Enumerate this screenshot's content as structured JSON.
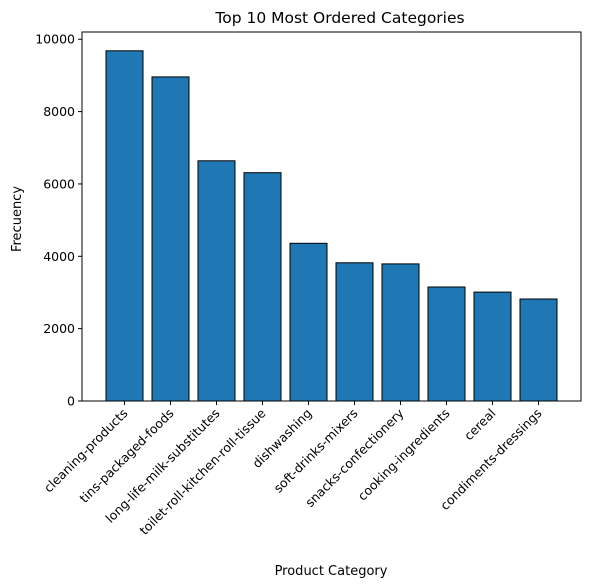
{
  "chart_data": {
    "type": "bar",
    "title": "Top 10 Most Ordered Categories",
    "xlabel": "Product Category",
    "ylabel": "Frecuency",
    "categories": [
      "cleaning-products",
      "tins-packaged-foods",
      "long-life-milk-substitutes",
      "toilet-roll-kitchen-roll-tissue",
      "dishwashing",
      "soft-drinks-mixers",
      "snacks-confectionery",
      "cooking-ingredients",
      "cereal",
      "condiments-dressings"
    ],
    "values": [
      9680,
      8960,
      6640,
      6310,
      4360,
      3820,
      3790,
      3150,
      3010,
      2820
    ],
    "ylim": [
      0,
      10200
    ],
    "yticks": [
      0,
      2000,
      4000,
      6000,
      8000,
      10000
    ],
    "grid": false,
    "legend": "none",
    "bar_color": "#1f77b4",
    "bar_edge_color": "#000000"
  }
}
